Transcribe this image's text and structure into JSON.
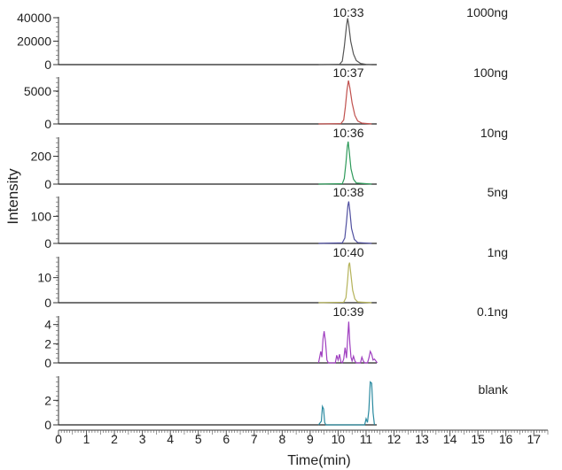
{
  "chart_data": {
    "type": "line",
    "xlabel": "Time(min)",
    "ylabel": "Intensity",
    "xlim": [
      0,
      17.5
    ],
    "x_ticks": [
      "0",
      "1",
      "2",
      "3",
      "4",
      "5",
      "6",
      "7",
      "8",
      "9",
      "10",
      "11",
      "12",
      "13",
      "14",
      "15",
      "16",
      "17"
    ],
    "panels": [
      {
        "name": "1000ng",
        "peak_label": "10:33",
        "color": "#555555",
        "ylim": [
          0,
          40000
        ],
        "y_ticks": [
          0,
          20000,
          40000
        ],
        "y_tick_labels": [
          "0",
          "20000",
          "40000"
        ],
        "x": [
          9.3,
          10.05,
          10.15,
          10.22,
          10.3,
          10.34,
          10.38,
          10.45,
          10.55,
          10.65,
          10.8,
          11.0,
          11.2
        ],
        "y": [
          0,
          200,
          3000,
          15000,
          33000,
          39500,
          34000,
          20000,
          9000,
          3500,
          1000,
          200,
          0
        ]
      },
      {
        "name": "100ng",
        "peak_label": "10:37",
        "color": "#c0504d",
        "ylim": [
          0,
          7000
        ],
        "y_ticks": [
          0,
          5000
        ],
        "y_tick_labels": [
          "0",
          "5000"
        ],
        "x": [
          9.3,
          10.1,
          10.2,
          10.26,
          10.32,
          10.37,
          10.42,
          10.5,
          10.6,
          10.7,
          10.85,
          11.2
        ],
        "y": [
          0,
          40,
          600,
          2600,
          5200,
          6600,
          5500,
          3200,
          1300,
          450,
          120,
          0
        ]
      },
      {
        "name": "10ng",
        "peak_label": "10:36",
        "color": "#2e9a5a",
        "ylim": [
          0,
          330
        ],
        "y_ticks": [
          0,
          200
        ],
        "y_tick_labels": [
          "0",
          "200"
        ],
        "x": [
          9.3,
          10.15,
          10.22,
          10.28,
          10.33,
          10.36,
          10.4,
          10.46,
          10.55,
          10.65,
          11.2
        ],
        "y": [
          0,
          3,
          40,
          150,
          270,
          305,
          230,
          110,
          35,
          8,
          0
        ]
      },
      {
        "name": "5ng",
        "peak_label": "10:38",
        "color": "#5050a0",
        "ylim": [
          0,
          170
        ],
        "y_ticks": [
          0,
          100
        ],
        "y_tick_labels": [
          "0",
          "100"
        ],
        "x": [
          9.3,
          10.15,
          10.24,
          10.3,
          10.35,
          10.38,
          10.42,
          10.48,
          10.58,
          10.7,
          11.2
        ],
        "y": [
          0,
          2,
          20,
          80,
          140,
          155,
          120,
          55,
          15,
          3,
          0
        ]
      },
      {
        "name": "1ng",
        "peak_label": "10:40",
        "color": "#b5b35a",
        "ylim": [
          0,
          18
        ],
        "y_ticks": [
          0,
          10
        ],
        "y_tick_labels": [
          "0",
          "10"
        ],
        "x": [
          9.3,
          10.2,
          10.28,
          10.34,
          10.38,
          10.41,
          10.45,
          10.52,
          10.6,
          10.7,
          11.2
        ],
        "y": [
          0,
          0.2,
          2,
          9,
          15,
          16,
          12,
          5,
          1.5,
          0.3,
          0
        ]
      },
      {
        "name": "0.1ng",
        "peak_label": "10:39",
        "color": "#a040c0",
        "ylim": [
          0,
          4.8
        ],
        "y_ticks": [
          0,
          2,
          4
        ],
        "y_tick_labels": [
          "0",
          "2",
          "4"
        ],
        "x": [
          9.3,
          9.38,
          9.42,
          9.46,
          9.5,
          9.55,
          9.6,
          9.65,
          9.72,
          9.9,
          9.95,
          10.0,
          10.05,
          10.1,
          10.15,
          10.2,
          10.25,
          10.3,
          10.34,
          10.38,
          10.42,
          10.46,
          10.5,
          10.55,
          10.6,
          10.65,
          10.7,
          10.8,
          10.85,
          10.9,
          10.95,
          11.0,
          11.05,
          11.1,
          11.15,
          11.2,
          11.25,
          11.3,
          11.35,
          11.4
        ],
        "y": [
          0,
          1.2,
          0.6,
          2.5,
          3.3,
          2.2,
          0.3,
          0,
          0,
          0,
          0.8,
          0.3,
          0.9,
          0.1,
          0,
          0.4,
          1.6,
          0.5,
          2.5,
          4.3,
          2.0,
          0.6,
          0.2,
          0.7,
          0.2,
          0,
          0,
          0,
          0.6,
          0.2,
          0,
          0,
          0,
          0.5,
          1.2,
          0.9,
          0.3,
          0.4,
          0.2,
          0
        ]
      },
      {
        "name": "blank",
        "peak_label": "",
        "color": "#2a8aa0",
        "ylim": [
          0,
          3.9
        ],
        "y_ticks": [
          0,
          2
        ],
        "y_tick_labels": [
          "0",
          "2"
        ],
        "x": [
          9.3,
          9.4,
          9.44,
          9.48,
          9.52,
          9.56,
          9.65,
          10.7,
          10.95,
          11.0,
          11.05,
          11.1,
          11.15,
          11.2,
          11.25,
          11.3
        ],
        "y": [
          0,
          0.3,
          1.5,
          1.3,
          0.2,
          0,
          0,
          0,
          0,
          0.5,
          0.2,
          1.2,
          3.5,
          3.4,
          1.0,
          0
        ]
      }
    ],
    "grid": false,
    "legend": "none"
  }
}
